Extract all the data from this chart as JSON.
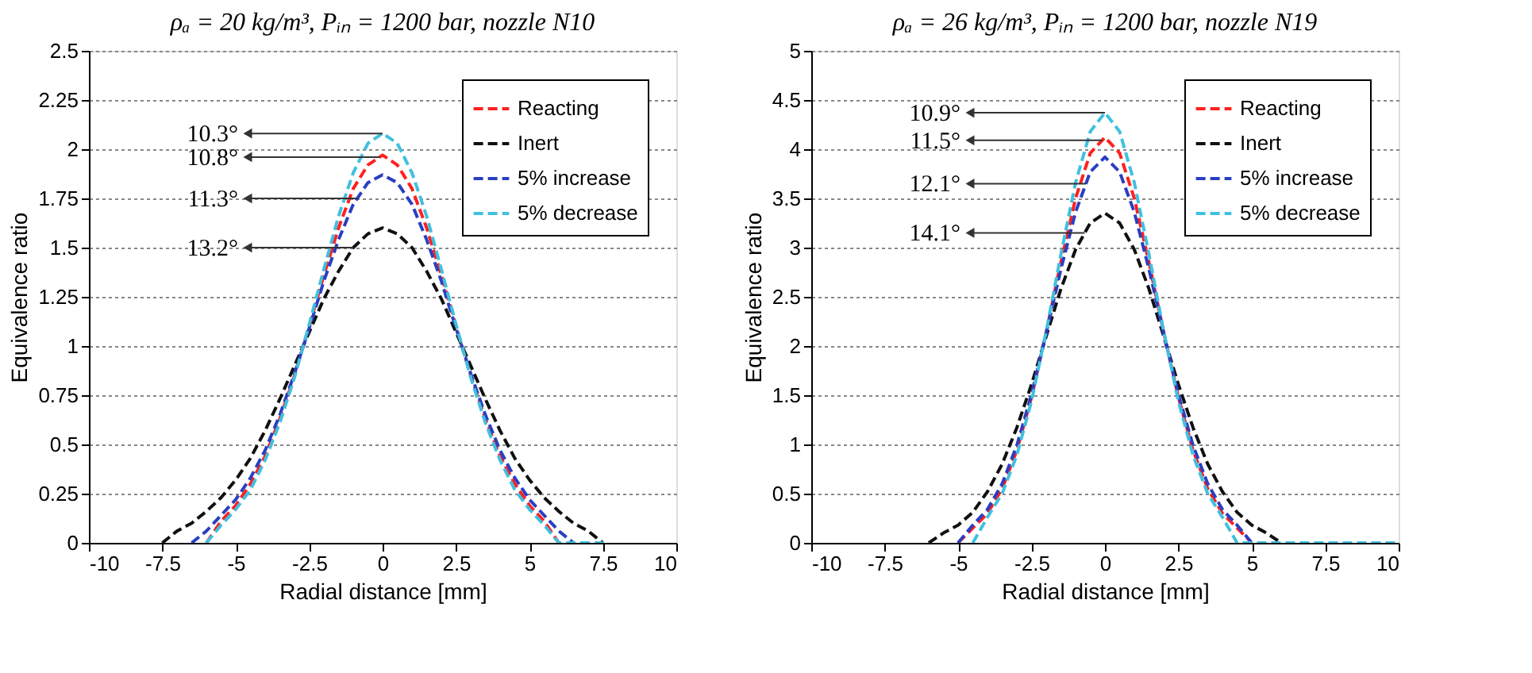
{
  "chart_data": [
    {
      "type": "line",
      "title": "ρₐ = 20 kg/m³, Pᵢₙ = 1200 bar, nozzle N10",
      "xlabel": "Radial distance [mm]",
      "ylabel": "Equivalence ratio",
      "xlim": [
        -10,
        10
      ],
      "ylim": [
        0,
        2.5
      ],
      "xticks": [
        -10,
        -7.5,
        -5,
        -2.5,
        0,
        2.5,
        5,
        7.5,
        10
      ],
      "yticks": [
        0,
        0.25,
        0.5,
        0.75,
        1,
        1.25,
        1.5,
        1.75,
        2,
        2.25,
        2.5
      ],
      "grid": "y",
      "legend": "top right",
      "line_style": "dashed",
      "series": [
        {
          "name": "Reacting",
          "color": "#ff2020",
          "x": [
            -6,
            -5.5,
            -5,
            -4.5,
            -4,
            -3.5,
            -3,
            -2.5,
            -2,
            -1.5,
            -1,
            -0.5,
            0,
            0.5,
            1,
            1.5,
            2,
            2.5,
            3,
            3.5,
            4,
            4.5,
            5,
            5.5,
            6
          ],
          "values": [
            0,
            0.11,
            0.19,
            0.3,
            0.44,
            0.63,
            0.85,
            1.1,
            1.36,
            1.6,
            1.8,
            1.92,
            1.97,
            1.92,
            1.8,
            1.6,
            1.36,
            1.1,
            0.85,
            0.63,
            0.44,
            0.3,
            0.19,
            0.11,
            0
          ]
        },
        {
          "name": "Inert",
          "color": "#101010",
          "x": [
            -7.5,
            -7,
            -6.5,
            -6,
            -5.5,
            -5,
            -4.5,
            -4,
            -3.5,
            -3,
            -2.5,
            -2,
            -1.5,
            -1,
            -0.5,
            0,
            0.5,
            1,
            1.5,
            2,
            2.5,
            3,
            3.5,
            4,
            4.5,
            5,
            5.5,
            6,
            6.5,
            7,
            7.5
          ],
          "values": [
            0,
            0.06,
            0.1,
            0.16,
            0.23,
            0.32,
            0.43,
            0.57,
            0.73,
            0.9,
            1.07,
            1.24,
            1.38,
            1.5,
            1.57,
            1.6,
            1.57,
            1.5,
            1.38,
            1.24,
            1.07,
            0.9,
            0.73,
            0.57,
            0.43,
            0.32,
            0.23,
            0.16,
            0.1,
            0.06,
            0
          ]
        },
        {
          "name": "5% increase",
          "color": "#2a3fc0",
          "x": [
            -6.5,
            -6,
            -5.5,
            -5,
            -4.5,
            -4,
            -3.5,
            -3,
            -2.5,
            -2,
            -1.5,
            -1,
            -0.5,
            0,
            0.5,
            1,
            1.5,
            2,
            2.5,
            3,
            3.5,
            4,
            4.5,
            5,
            5.5,
            6,
            6.5
          ],
          "values": [
            0,
            0.06,
            0.14,
            0.22,
            0.33,
            0.47,
            0.65,
            0.86,
            1.09,
            1.33,
            1.54,
            1.72,
            1.83,
            1.87,
            1.83,
            1.72,
            1.54,
            1.33,
            1.09,
            0.86,
            0.65,
            0.47,
            0.33,
            0.22,
            0.14,
            0.06,
            0
          ]
        },
        {
          "name": "5% decrease",
          "color": "#40c0e0",
          "x": [
            -6,
            -5.5,
            -5,
            -4.5,
            -4,
            -3.5,
            -3,
            -2.5,
            -2,
            -1.5,
            -1,
            -0.5,
            0,
            0.5,
            1,
            1.5,
            2,
            2.5,
            3,
            3.5,
            4,
            4.5,
            5,
            5.5,
            6,
            6.5,
            7,
            7.5
          ],
          "values": [
            0,
            0.09,
            0.17,
            0.27,
            0.42,
            0.61,
            0.84,
            1.11,
            1.39,
            1.66,
            1.88,
            2.03,
            2.08,
            2.03,
            1.88,
            1.66,
            1.39,
            1.11,
            0.84,
            0.61,
            0.42,
            0.27,
            0.17,
            0.09,
            0,
            0,
            0,
            0
          ]
        }
      ],
      "annotations": [
        {
          "text": "10.3°",
          "x": 0,
          "y": 2.08
        },
        {
          "text": "10.8°",
          "x": -0.1,
          "y": 1.96
        },
        {
          "text": "11.3°",
          "x": -0.86,
          "y": 1.75
        },
        {
          "text": "13.2°",
          "x": -1,
          "y": 1.5
        }
      ]
    },
    {
      "type": "line",
      "title": "ρₐ = 26 kg/m³, Pᵢₙ = 1200 bar, nozzle N19",
      "xlabel": "Radial distance [mm]",
      "ylabel": "Equivalence ratio",
      "xlim": [
        -10,
        10
      ],
      "ylim": [
        0,
        5
      ],
      "xticks": [
        -10,
        -7.5,
        -5,
        -2.5,
        0,
        2.5,
        5,
        7.5,
        10
      ],
      "yticks": [
        0,
        0.5,
        1,
        1.5,
        2,
        2.5,
        3,
        3.5,
        4,
        4.5,
        5
      ],
      "grid": "y",
      "legend": "top right",
      "line_style": "dashed",
      "series": [
        {
          "name": "Reacting",
          "color": "#ff2020",
          "x": [
            -5,
            -4.5,
            -4,
            -3.5,
            -3,
            -2.5,
            -2,
            -1.5,
            -1,
            -0.5,
            0,
            0.5,
            1,
            1.5,
            2,
            2.5,
            3,
            3.5,
            4,
            4.5,
            5
          ],
          "values": [
            0,
            0.15,
            0.3,
            0.55,
            0.94,
            1.48,
            2.14,
            2.85,
            3.5,
            3.96,
            4.12,
            3.96,
            3.5,
            2.85,
            2.14,
            1.48,
            0.94,
            0.55,
            0.3,
            0.15,
            0
          ]
        },
        {
          "name": "Inert",
          "color": "#101010",
          "x": [
            -6,
            -5.5,
            -5,
            -4.5,
            -4,
            -3.5,
            -3,
            -2.5,
            -2,
            -1.5,
            -1,
            -0.5,
            0,
            0.5,
            1,
            1.5,
            2,
            2.5,
            3,
            3.5,
            4,
            4.5,
            5,
            5.5,
            6
          ],
          "values": [
            0,
            0.1,
            0.18,
            0.31,
            0.52,
            0.8,
            1.17,
            1.61,
            2.1,
            2.58,
            2.98,
            3.25,
            3.35,
            3.25,
            2.98,
            2.58,
            2.1,
            1.61,
            1.17,
            0.8,
            0.52,
            0.31,
            0.18,
            0.1,
            0
          ]
        },
        {
          "name": "5% increase",
          "color": "#2a3fc0",
          "x": [
            -5,
            -4.5,
            -4,
            -3.5,
            -3,
            -2.5,
            -2,
            -1.5,
            -1,
            -0.5,
            0,
            0.5,
            1,
            1.5,
            2,
            2.5,
            3,
            3.5,
            4,
            4.5,
            5
          ],
          "values": [
            0,
            0.18,
            0.34,
            0.6,
            0.99,
            1.51,
            2.13,
            2.78,
            3.36,
            3.77,
            3.92,
            3.77,
            3.36,
            2.78,
            2.13,
            1.51,
            0.99,
            0.6,
            0.34,
            0.18,
            0
          ]
        },
        {
          "name": "5% decrease",
          "color": "#40c0e0",
          "x": [
            -4.5,
            -4,
            -3.5,
            -3,
            -2.5,
            -2,
            -1.5,
            -1,
            -0.5,
            0,
            0.5,
            1,
            1.5,
            2,
            2.5,
            3,
            3.5,
            4,
            4.5,
            7.5,
            10
          ],
          "values": [
            0,
            0.26,
            0.5,
            0.89,
            1.44,
            2.15,
            2.93,
            3.66,
            4.18,
            4.37,
            4.18,
            3.66,
            2.93,
            2.15,
            1.44,
            0.89,
            0.5,
            0.26,
            0,
            0,
            0
          ]
        }
      ],
      "annotations": [
        {
          "text": "10.9°",
          "x": 0,
          "y": 4.37
        },
        {
          "text": "11.5°",
          "x": -0.1,
          "y": 4.09
        },
        {
          "text": "12.1°",
          "x": -0.65,
          "y": 3.65
        },
        {
          "text": "14.1°",
          "x": -0.69,
          "y": 3.15
        }
      ]
    }
  ]
}
